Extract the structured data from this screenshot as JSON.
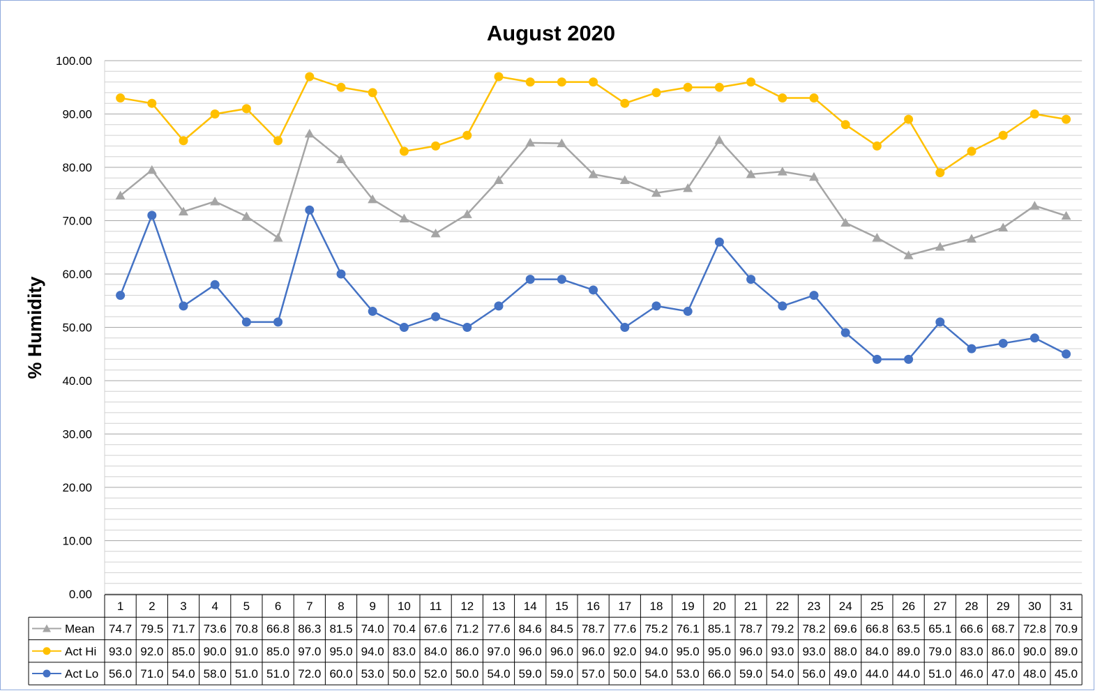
{
  "chart_data": {
    "type": "line",
    "title": "August 2020",
    "ylabel": "% Humidity",
    "xlabel": "",
    "ylim": [
      0,
      100
    ],
    "y_major_step": 10,
    "y_minor_step": 2,
    "y_tick_labels": [
      "0.00",
      "10.00",
      "20.00",
      "30.00",
      "40.00",
      "50.00",
      "60.00",
      "70.00",
      "80.00",
      "90.00",
      "100.00"
    ],
    "grid": true,
    "legend": "data-table",
    "categories": [
      1,
      2,
      3,
      4,
      5,
      6,
      7,
      8,
      9,
      10,
      11,
      12,
      13,
      14,
      15,
      16,
      17,
      18,
      19,
      20,
      21,
      22,
      23,
      24,
      25,
      26,
      27,
      28,
      29,
      30,
      31
    ],
    "series": [
      {
        "name": "Mean",
        "color": "#a5a5a5",
        "marker": "triangle",
        "values": [
          74.7,
          79.5,
          71.7,
          73.6,
          70.8,
          66.8,
          86.3,
          81.5,
          74.0,
          70.4,
          67.6,
          71.2,
          77.6,
          84.6,
          84.5,
          78.7,
          77.6,
          75.2,
          76.1,
          85.1,
          78.7,
          79.2,
          78.2,
          69.6,
          66.8,
          63.5,
          65.1,
          66.6,
          68.7,
          72.8,
          70.9
        ]
      },
      {
        "name": "Act Hi",
        "color": "#ffc000",
        "marker": "circle",
        "values": [
          93.0,
          92.0,
          85.0,
          90.0,
          91.0,
          85.0,
          97.0,
          95.0,
          94.0,
          83.0,
          84.0,
          86.0,
          97.0,
          96.0,
          96.0,
          96.0,
          92.0,
          94.0,
          95.0,
          95.0,
          96.0,
          93.0,
          93.0,
          88.0,
          84.0,
          89.0,
          79.0,
          83.0,
          86.0,
          90.0,
          89.0
        ]
      },
      {
        "name": "Act Lo",
        "color": "#4472c4",
        "marker": "circle",
        "values": [
          56.0,
          71.0,
          54.0,
          58.0,
          51.0,
          51.0,
          72.0,
          60.0,
          53.0,
          50.0,
          52.0,
          50.0,
          54.0,
          59.0,
          59.0,
          57.0,
          50.0,
          54.0,
          53.0,
          66.0,
          59.0,
          54.0,
          56.0,
          49.0,
          44.0,
          44.0,
          51.0,
          46.0,
          47.0,
          48.0,
          45.0
        ]
      }
    ]
  }
}
